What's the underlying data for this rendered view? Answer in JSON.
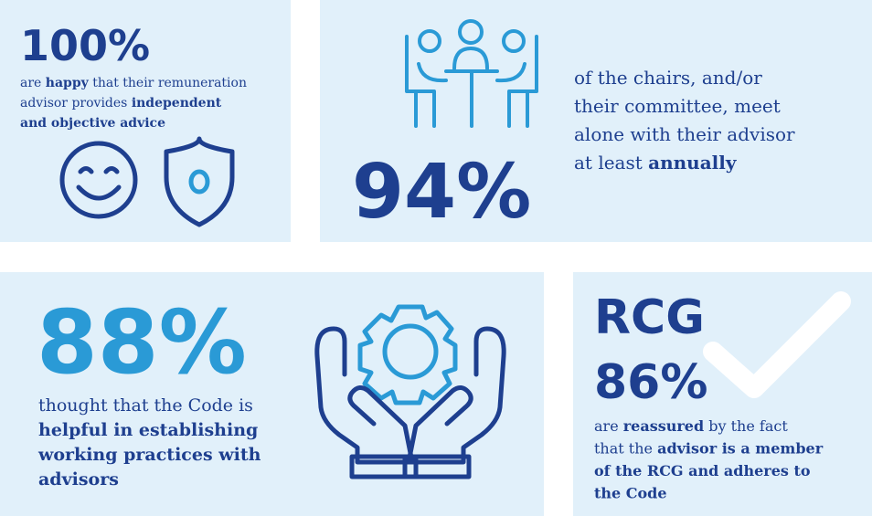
{
  "panels": [
    {
      "stat": "100%",
      "lines": [
        [
          {
            "text": "are "
          },
          {
            "text": "happy",
            "bold": true
          },
          {
            "text": " that their remuneration"
          }
        ],
        [
          {
            "text": "advisor provides "
          },
          {
            "text": "independent",
            "bold": true
          }
        ],
        [
          {
            "text": "and objective advice",
            "bold": true
          }
        ]
      ]
    },
    {
      "stat": "94%",
      "lines": [
        [
          {
            "text": "of the chairs, and/or"
          }
        ],
        [
          {
            "text": "their committee, meet"
          }
        ],
        [
          {
            "text": "alone with their advisor"
          }
        ],
        [
          {
            "text": "at least "
          },
          {
            "text": "annually",
            "bold": true
          }
        ]
      ]
    },
    {
      "stat": "88%",
      "lines": [
        [
          {
            "text": "thought that the Code is"
          }
        ],
        [
          {
            "text": "helpful in establishing",
            "bold": true
          }
        ],
        [
          {
            "text": "working practices with",
            "bold": true
          }
        ],
        [
          {
            "text": "advisors",
            "bold": true
          }
        ]
      ]
    },
    {
      "heading": "RCG",
      "stat": "86%",
      "lines": [
        [
          {
            "text": "are "
          },
          {
            "text": "reassured",
            "bold": true
          },
          {
            "text": " by the fact"
          }
        ],
        [
          {
            "text": "that the "
          },
          {
            "text": "advisor is a member",
            "bold": true
          }
        ],
        [
          {
            "text": "of the RCG and adheres to",
            "bold": true
          }
        ],
        [
          {
            "text": "the Code",
            "bold": true
          }
        ]
      ]
    }
  ]
}
